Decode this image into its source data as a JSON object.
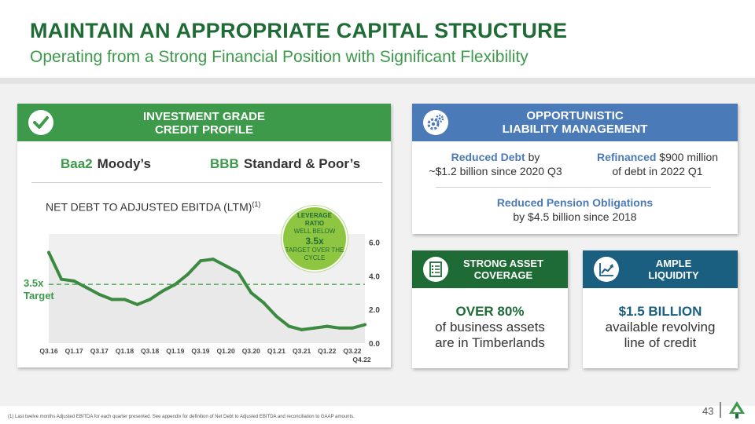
{
  "header": {
    "title": "MAINTAIN AN APPROPRIATE CAPITAL STRUCTURE",
    "subtitle": "Operating from a Strong Financial Position with Significant Flexibility"
  },
  "credit": {
    "head_line1": "INVESTMENT GRADE",
    "head_line2": "CREDIT PROFILE",
    "moodys_rating": "Baa2",
    "moodys_label": "Moody’s",
    "sp_rating": "BBB",
    "sp_label": "Standard & Poor’s",
    "chart_title": "NET DEBT TO ADJUSTED EBITDA (LTM)",
    "chart_title_sup": "(1)",
    "target_line1": "3.5x",
    "target_line2": "Target",
    "badge": {
      "line1": "LEVERAGE",
      "line2": "RATIO",
      "line3": "WELL BELOW",
      "value": "3.5x",
      "line4": "TARGET OVER THE",
      "line5": "CYCLE"
    }
  },
  "chart_data": {
    "type": "area",
    "title": "NET DEBT TO ADJUSTED EBITDA (LTM)",
    "x": [
      "Q3.16",
      "Q4.16",
      "Q1.17",
      "Q2.17",
      "Q3.17",
      "Q4.17",
      "Q1.18",
      "Q2.18",
      "Q3.18",
      "Q4.18",
      "Q1.19",
      "Q2.19",
      "Q3.19",
      "Q4.19",
      "Q1.20",
      "Q2.20",
      "Q3.20",
      "Q4.20",
      "Q1.21",
      "Q2.21",
      "Q3.21",
      "Q4.21",
      "Q1.22",
      "Q2.22",
      "Q3.22",
      "Q4.22"
    ],
    "tick_labels": [
      "Q3.16",
      "Q1.17",
      "Q3.17",
      "Q1.18",
      "Q3.18",
      "Q1.19",
      "Q3.19",
      "Q1.20",
      "Q3.20",
      "Q1.21",
      "Q3.21",
      "Q1.22",
      "Q3.22"
    ],
    "last_label": "Q4.22",
    "values": [
      5.4,
      3.8,
      3.7,
      3.3,
      2.9,
      2.6,
      2.6,
      2.3,
      2.6,
      3.1,
      3.5,
      4.1,
      4.9,
      5.0,
      4.6,
      4.2,
      3.0,
      2.4,
      1.6,
      1.0,
      0.8,
      0.9,
      1.0,
      0.9,
      0.9,
      1.1
    ],
    "yticks": [
      "0.0",
      "2.0",
      "4.0",
      "6.0"
    ],
    "ylim": [
      0,
      6.5
    ],
    "target": 3.5,
    "color": "#3c8a40"
  },
  "liability": {
    "head_line1": "OPPORTUNISTIC",
    "head_line2": "LIABILITY MANAGEMENT",
    "debt_bold": "Reduced Debt",
    "debt_rest": " by",
    "debt_line2": "~$1.2 billion since 2020 Q3",
    "refi_bold": "Refinanced",
    "refi_rest": " $900 million",
    "refi_line2": "of debt in 2022 Q1",
    "pension_bold": "Reduced Pension Obligations",
    "pension_line2": "by $4.5 billion since 2018"
  },
  "asset": {
    "head_line1": "STRONG ASSET",
    "head_line2": "COVERAGE",
    "stat": "OVER 80%",
    "line2": "of business assets",
    "line3": "are in Timberlands"
  },
  "liquidity": {
    "head_line1": "AMPLE",
    "head_line2": "LIQUIDITY",
    "stat": "$1.5 BILLION",
    "line2": "available revolving",
    "line3": "line of credit"
  },
  "footer": {
    "footnote": "(1) Last twelve months Adjusted EBITDA for each quarter presented. See appendix for definition of Net Debt to Adjusted EBITDA and reconciliation to GAAP amounts.",
    "page": "43"
  },
  "icons": {
    "credit": "checkmark-icon",
    "liability": "gears-icon",
    "asset": "checklist-icon",
    "liquidity": "growth-chart-icon",
    "logo": "tree-logo-icon"
  },
  "colors": {
    "brand_green": "#1f6b36",
    "accent_green": "#3c9a4a",
    "blue": "#4a7ab8",
    "teal_blue": "#1a5e80",
    "lime": "#8fc641"
  }
}
